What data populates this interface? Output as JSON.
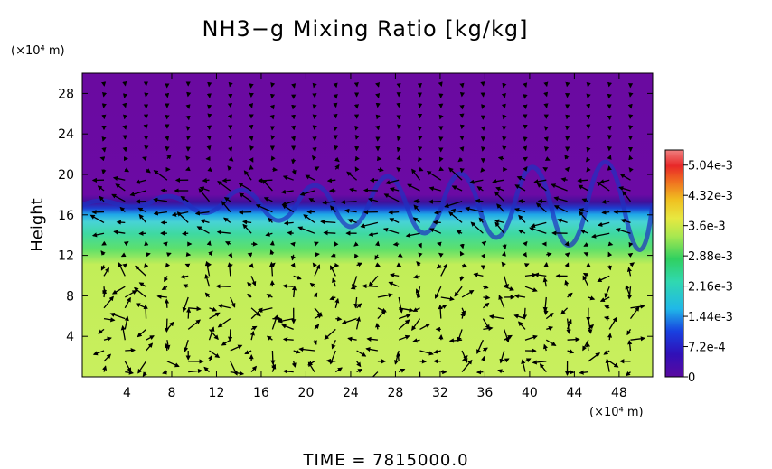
{
  "chart_data": {
    "type": "heatmap",
    "title": "NH3−g Mixing Ratio [kg/kg]",
    "ylabel": "Height",
    "y_unit": "(×10⁴ m)",
    "x_unit": "(×10⁴ m)",
    "footer": "TIME = 7815000.0",
    "xlim": [
      0,
      51
    ],
    "ylim": [
      0,
      30
    ],
    "x_ticks": [
      "4",
      "8",
      "12",
      "16",
      "20",
      "24",
      "28",
      "32",
      "36",
      "40",
      "44",
      "48"
    ],
    "x_tick_values": [
      4,
      8,
      12,
      16,
      20,
      24,
      28,
      32,
      36,
      40,
      44,
      48
    ],
    "y_ticks": [
      "4",
      "8",
      "12",
      "16",
      "20",
      "24",
      "28"
    ],
    "y_tick_values": [
      4,
      8,
      12,
      16,
      20,
      24,
      28
    ],
    "colorbar": {
      "min": 0,
      "max": 0.0054,
      "ticks": [
        "0",
        "7.2e-4",
        "1.44e-3",
        "2.16e-3",
        "2.88e-3",
        "3.6e-3",
        "4.32e-3",
        "5.04e-3"
      ],
      "tick_values": [
        0,
        0.00072,
        0.00144,
        0.00216,
        0.00288,
        0.0036,
        0.00432,
        0.00504
      ]
    },
    "field_layers": [
      {
        "region": "lower",
        "height_range": [
          0,
          11.5
        ],
        "value": 0.0036
      },
      {
        "region": "transition",
        "height_range": [
          11.5,
          13.5
        ],
        "value": 0.003
      },
      {
        "region": "middle",
        "height_range": [
          13.5,
          15.5
        ],
        "value": 0.0022
      },
      {
        "region": "upper-edge",
        "height_range": [
          15.5,
          17
        ],
        "value": 0.0012
      },
      {
        "region": "top",
        "height_range": [
          17,
          30
        ],
        "value": 0.0
      }
    ],
    "vector_field": "wind velocity arrows on regular grid"
  },
  "colors": {
    "background": "#ffffff",
    "axis": "#000000",
    "arrows": "#000000",
    "field_zero": "#6a0aa0"
  }
}
